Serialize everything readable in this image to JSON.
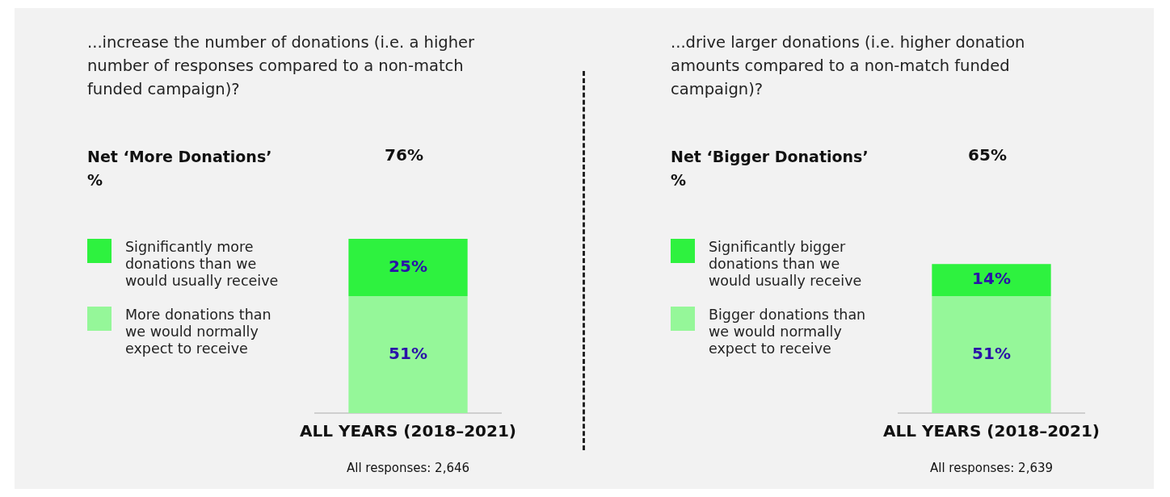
{
  "chart_data": [
    {
      "type": "bar",
      "title": "...increase the number of donations (i.e. a higher number of responses compared to a non-match funded campaign)?",
      "stacked": true,
      "categories": [
        "ALL YEARS (2018–2021)"
      ],
      "legend": "left",
      "annotations": [
        "Net ‘More Donations’ %",
        "76%",
        "All responses: 2,646"
      ],
      "series": [
        {
          "name": "More donations than we would normally expect to receive",
          "color": "#95f799",
          "values": [
            51
          ],
          "value_labels": [
            "51%"
          ]
        },
        {
          "name": "Significantly more donations than we would usually receive",
          "color": "#2ef23f",
          "values": [
            25
          ],
          "value_labels": [
            "25%"
          ]
        }
      ]
    },
    {
      "type": "bar",
      "title": "...drive larger donations (i.e. higher donation amounts compared to a non-match funded campaign)?",
      "stacked": true,
      "categories": [
        "ALL YEARS (2018–2021)"
      ],
      "legend": "left",
      "annotations": [
        "Net ‘Bigger Donations’ %",
        "65%",
        "All responses: 2,639"
      ],
      "series": [
        {
          "name": "Bigger donations than we would normally expect to receive",
          "color": "#95f799",
          "values": [
            51
          ],
          "value_labels": [
            "51%"
          ]
        },
        {
          "name": "Significantly bigger donations than we would usually receive",
          "color": "#2ef23f",
          "values": [
            14
          ],
          "value_labels": [
            "14%"
          ]
        }
      ]
    }
  ]
}
